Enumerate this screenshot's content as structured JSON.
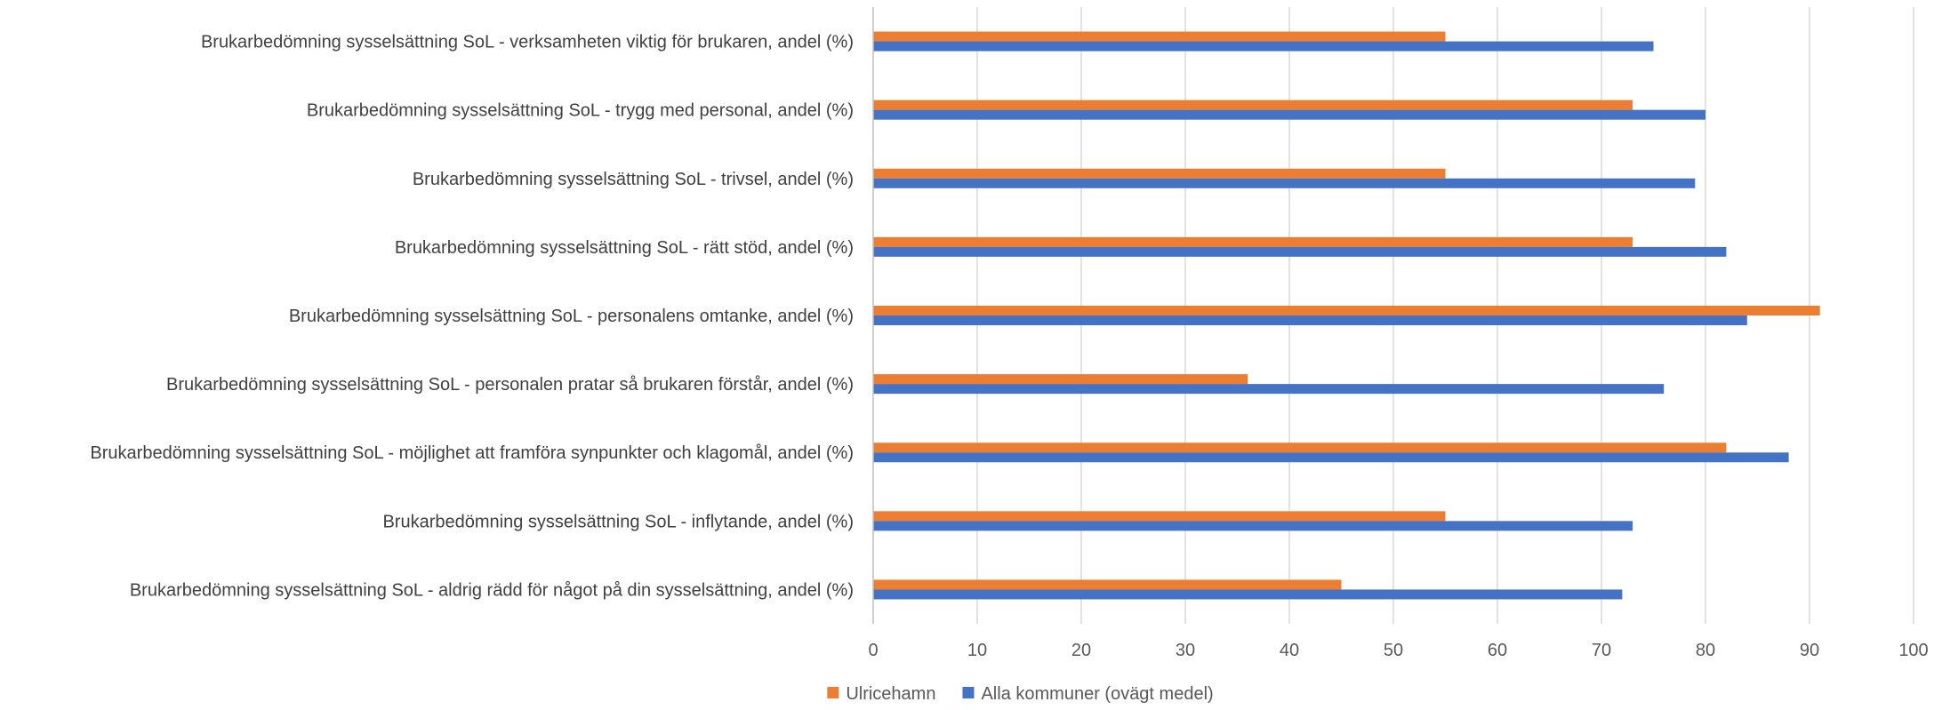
{
  "chart_data": {
    "type": "bar",
    "orientation": "horizontal",
    "categories": [
      "Brukarbedömning sysselsättning SoL - verksamheten viktig för brukaren, andel (%)",
      "Brukarbedömning sysselsättning SoL - trygg med personal, andel (%)",
      "Brukarbedömning sysselsättning SoL - trivsel, andel (%)",
      "Brukarbedömning sysselsättning SoL - rätt stöd, andel (%)",
      "Brukarbedömning sysselsättning SoL - personalens omtanke, andel (%)",
      "Brukarbedömning sysselsättning SoL - personalen pratar så brukaren förstår, andel (%)",
      "Brukarbedömning sysselsättning SoL - möjlighet att framföra synpunkter och klagomål, andel (%)",
      "Brukarbedömning sysselsättning SoL - inflytande, andel (%)",
      "Brukarbedömning sysselsättning SoL - aldrig rädd för något på din sysselsättning, andel (%)"
    ],
    "series": [
      {
        "name": "Ulricehamn",
        "color": "#ED7D31",
        "values": [
          55,
          73,
          55,
          73,
          91,
          36,
          82,
          55,
          45
        ]
      },
      {
        "name": "Alla kommuner (ovägt medel)",
        "color": "#4472C4",
        "values": [
          75,
          80,
          79,
          82,
          84,
          76,
          88,
          73,
          72
        ]
      }
    ],
    "xlim": [
      0,
      100
    ],
    "xticks": [
      0,
      10,
      20,
      30,
      40,
      50,
      60,
      70,
      80,
      90,
      100
    ],
    "grid": true,
    "legend_position": "bottom",
    "title": "",
    "xlabel": "",
    "ylabel": ""
  }
}
